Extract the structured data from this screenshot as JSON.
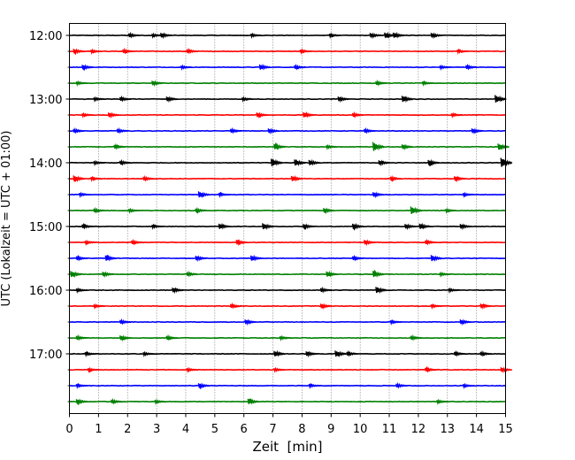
{
  "chart_data": {
    "type": "line",
    "title": "",
    "xlabel": "Zeit  [min]",
    "ylabel": "UTC (Lokalzeit = UTC + 01:00)",
    "xlim": [
      0,
      15
    ],
    "x_ticks": [
      "0",
      "1",
      "2",
      "3",
      "4",
      "5",
      "6",
      "7",
      "8",
      "9",
      "10",
      "11",
      "12",
      "13",
      "14",
      "15"
    ],
    "y_ticks": [
      "12:00",
      "13:00",
      "14:00",
      "15:00",
      "16:00",
      "17:00"
    ],
    "grid": "vertical dotted lines at each minute",
    "trace_minutes": 15,
    "trace_colors": [
      "#000000",
      "#ff0000",
      "#0000ff",
      "#008000"
    ],
    "traces": [
      {
        "start": "12:00",
        "events": [
          [
            2.1,
            0.25
          ],
          [
            2.9,
            0.2
          ],
          [
            3.2,
            0.3
          ],
          [
            6.3,
            0.2
          ],
          [
            9.0,
            0.2
          ],
          [
            10.4,
            0.3
          ],
          [
            10.9,
            0.35
          ],
          [
            11.2,
            0.35
          ],
          [
            12.5,
            0.3
          ]
        ]
      },
      {
        "start": "12:15",
        "events": [
          [
            0.2,
            0.3
          ],
          [
            0.8,
            0.2
          ],
          [
            1.9,
            0.25
          ],
          [
            4.1,
            0.25
          ],
          [
            8.0,
            0.2
          ],
          [
            13.4,
            0.2
          ]
        ]
      },
      {
        "start": "12:30",
        "events": [
          [
            0.5,
            0.3
          ],
          [
            3.9,
            0.2
          ],
          [
            6.6,
            0.35
          ],
          [
            7.8,
            0.25
          ],
          [
            12.8,
            0.2
          ],
          [
            13.7,
            0.25
          ]
        ]
      },
      {
        "start": "12:45",
        "events": [
          [
            0.3,
            0.2
          ],
          [
            2.9,
            0.3
          ],
          [
            10.6,
            0.25
          ],
          [
            12.2,
            0.2
          ]
        ]
      },
      {
        "start": "13:00",
        "events": [
          [
            0.9,
            0.2
          ],
          [
            1.8,
            0.25
          ],
          [
            3.4,
            0.3
          ],
          [
            6.0,
            0.2
          ],
          [
            9.3,
            0.3
          ],
          [
            11.5,
            0.4
          ],
          [
            14.7,
            0.5
          ]
        ]
      },
      {
        "start": "13:15",
        "events": [
          [
            0.5,
            0.2
          ],
          [
            1.4,
            0.3
          ],
          [
            6.5,
            0.3
          ],
          [
            8.1,
            0.35
          ],
          [
            9.8,
            0.25
          ],
          [
            13.2,
            0.2
          ]
        ]
      },
      {
        "start": "13:30",
        "events": [
          [
            0.2,
            0.25
          ],
          [
            1.7,
            0.25
          ],
          [
            5.6,
            0.25
          ],
          [
            6.9,
            0.3
          ],
          [
            10.2,
            0.25
          ],
          [
            13.9,
            0.3
          ]
        ]
      },
      {
        "start": "13:45",
        "events": [
          [
            1.6,
            0.25
          ],
          [
            7.1,
            0.35
          ],
          [
            8.9,
            0.2
          ],
          [
            10.5,
            0.6
          ],
          [
            11.5,
            0.3
          ],
          [
            14.8,
            0.4
          ]
        ]
      },
      {
        "start": "14:00",
        "events": [
          [
            0.9,
            0.2
          ],
          [
            1.8,
            0.25
          ],
          [
            7.0,
            0.5
          ],
          [
            7.8,
            0.4
          ],
          [
            8.3,
            0.35
          ],
          [
            10.7,
            0.3
          ],
          [
            12.4,
            0.35
          ],
          [
            14.9,
            0.6
          ]
        ]
      },
      {
        "start": "14:15",
        "events": [
          [
            0.2,
            0.4
          ],
          [
            0.8,
            0.2
          ],
          [
            2.6,
            0.25
          ],
          [
            7.7,
            0.35
          ],
          [
            11.1,
            0.25
          ],
          [
            13.3,
            0.3
          ]
        ]
      },
      {
        "start": "14:30",
        "events": [
          [
            0.4,
            0.2
          ],
          [
            4.5,
            0.4
          ],
          [
            5.2,
            0.2
          ],
          [
            10.5,
            0.3
          ],
          [
            13.6,
            0.2
          ]
        ]
      },
      {
        "start": "14:45",
        "events": [
          [
            0.9,
            0.25
          ],
          [
            2.1,
            0.2
          ],
          [
            4.4,
            0.25
          ],
          [
            8.8,
            0.3
          ],
          [
            11.8,
            0.5
          ],
          [
            13.0,
            0.2
          ]
        ]
      },
      {
        "start": "15:00",
        "events": [
          [
            0.5,
            0.25
          ],
          [
            2.9,
            0.2
          ],
          [
            5.2,
            0.35
          ],
          [
            6.7,
            0.4
          ],
          [
            8.1,
            0.3
          ],
          [
            9.8,
            0.35
          ],
          [
            11.6,
            0.3
          ],
          [
            12.1,
            0.35
          ],
          [
            13.5,
            0.3
          ]
        ]
      },
      {
        "start": "15:15",
        "events": [
          [
            0.6,
            0.2
          ],
          [
            2.2,
            0.25
          ],
          [
            5.8,
            0.3
          ],
          [
            10.2,
            0.3
          ],
          [
            12.3,
            0.25
          ]
        ]
      },
      {
        "start": "15:30",
        "events": [
          [
            0.3,
            0.25
          ],
          [
            1.3,
            0.35
          ],
          [
            4.4,
            0.3
          ],
          [
            6.3,
            0.35
          ],
          [
            9.8,
            0.25
          ],
          [
            12.5,
            0.4
          ]
        ]
      },
      {
        "start": "15:45",
        "events": [
          [
            0.1,
            0.4
          ],
          [
            1.2,
            0.3
          ],
          [
            4.1,
            0.25
          ],
          [
            8.9,
            0.35
          ],
          [
            10.5,
            0.4
          ],
          [
            12.8,
            0.2
          ]
        ]
      },
      {
        "start": "16:00",
        "events": [
          [
            0.3,
            0.2
          ],
          [
            3.6,
            0.3
          ],
          [
            8.7,
            0.25
          ],
          [
            10.6,
            0.4
          ],
          [
            13.1,
            0.2
          ]
        ]
      },
      {
        "start": "16:15",
        "events": [
          [
            0.9,
            0.2
          ],
          [
            5.6,
            0.25
          ],
          [
            8.7,
            0.3
          ],
          [
            12.5,
            0.2
          ],
          [
            14.2,
            0.3
          ]
        ]
      },
      {
        "start": "16:30",
        "events": [
          [
            1.8,
            0.25
          ],
          [
            6.1,
            0.3
          ],
          [
            11.1,
            0.2
          ],
          [
            13.5,
            0.3
          ]
        ]
      },
      {
        "start": "16:45",
        "events": [
          [
            0.3,
            0.25
          ],
          [
            1.8,
            0.3
          ],
          [
            3.4,
            0.25
          ],
          [
            7.3,
            0.2
          ],
          [
            11.8,
            0.25
          ]
        ]
      },
      {
        "start": "17:00",
        "events": [
          [
            0.6,
            0.2
          ],
          [
            2.6,
            0.2
          ],
          [
            7.1,
            0.35
          ],
          [
            8.2,
            0.3
          ],
          [
            9.2,
            0.4
          ],
          [
            9.6,
            0.25
          ],
          [
            13.3,
            0.25
          ],
          [
            14.2,
            0.25
          ]
        ]
      },
      {
        "start": "17:15",
        "events": [
          [
            0.7,
            0.2
          ],
          [
            4.1,
            0.2
          ],
          [
            7.1,
            0.2
          ],
          [
            12.3,
            0.25
          ],
          [
            14.9,
            0.3
          ]
        ]
      },
      {
        "start": "17:30",
        "events": [
          [
            0.3,
            0.2
          ],
          [
            4.5,
            0.3
          ],
          [
            8.3,
            0.2
          ],
          [
            11.3,
            0.25
          ],
          [
            13.6,
            0.2
          ]
        ]
      },
      {
        "start": "17:45",
        "events": [
          [
            0.3,
            0.3
          ],
          [
            1.5,
            0.25
          ],
          [
            3.0,
            0.2
          ],
          [
            6.2,
            0.35
          ],
          [
            12.7,
            0.2
          ]
        ]
      }
    ]
  }
}
